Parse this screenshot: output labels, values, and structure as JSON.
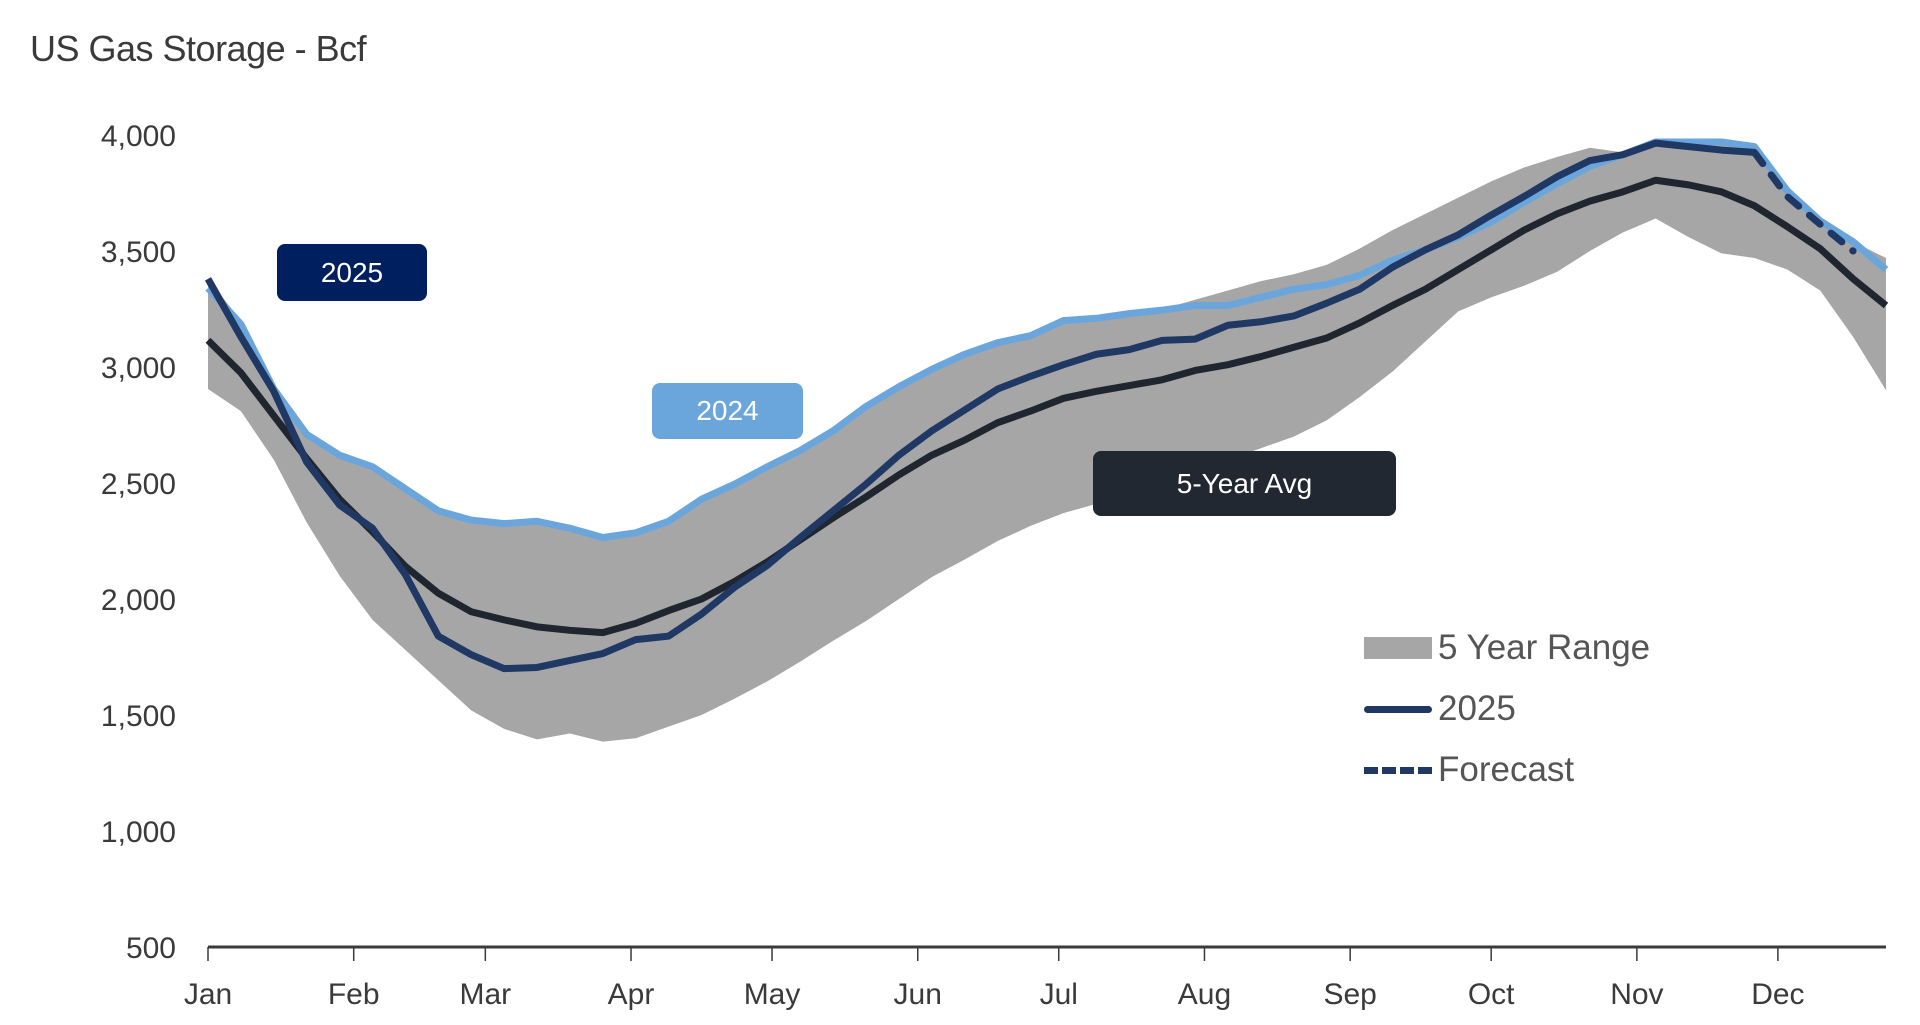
{
  "chart_data": {
    "type": "line",
    "title": "US Gas Storage - Bcf",
    "xlabel": "",
    "ylabel": "",
    "ylim": [
      500,
      4000
    ],
    "yticks": [
      "500",
      "1,000",
      "1,500",
      "2,000",
      "2,500",
      "3,000",
      "3,500",
      "4,000"
    ],
    "ytick_values": [
      500,
      1000,
      1500,
      2000,
      2500,
      3000,
      3500,
      4000
    ],
    "xlim": [
      "2025-01-01",
      "2025-12-24"
    ],
    "xticks": [
      "Jan",
      "Feb",
      "Mar",
      "Apr",
      "May",
      "Jun",
      "Jul",
      "Aug",
      "Sep",
      "Oct",
      "Nov",
      "Dec"
    ],
    "xtick_dates": [
      "2025-01-01",
      "2025-02-01",
      "2025-03-01",
      "2025-04-01",
      "2025-05-01",
      "2025-06-01",
      "2025-07-01",
      "2025-08-01",
      "2025-09-01",
      "2025-10-01",
      "2025-11-01",
      "2025-12-01"
    ],
    "x_start": "2025-01-01",
    "x_step_days": 7,
    "grid": false,
    "legend_position": "lower-right",
    "band": {
      "name": "5 Year Range",
      "color": "#a6a6a6",
      "lower": [
        2905,
        2810,
        2600,
        2330,
        2100,
        1910,
        1780,
        1650,
        1520,
        1440,
        1395,
        1420,
        1385,
        1400,
        1450,
        1500,
        1570,
        1645,
        1730,
        1820,
        1905,
        2000,
        2095,
        2170,
        2250,
        2315,
        2370,
        2410,
        2440,
        2490,
        2540,
        2600,
        2650,
        2700,
        2770,
        2870,
        2980,
        3110,
        3240,
        3300,
        3350,
        3410,
        3500,
        3580,
        3640,
        3560,
        3490,
        3470,
        3420,
        3330,
        3130,
        2900
      ],
      "upper": [
        3380,
        3200,
        2910,
        2720,
        2625,
        2575,
        2480,
        2385,
        2345,
        2330,
        2340,
        2310,
        2270,
        2290,
        2340,
        2435,
        2500,
        2575,
        2645,
        2730,
        2835,
        2920,
        2995,
        3060,
        3110,
        3140,
        3205,
        3215,
        3235,
        3250,
        3290,
        3330,
        3370,
        3400,
        3440,
        3510,
        3590,
        3660,
        3730,
        3800,
        3860,
        3905,
        3945,
        3925,
        3960,
        3965,
        3965,
        3955,
        3780,
        3640,
        3540,
        3470
      ]
    },
    "series": [
      {
        "key": "avg",
        "label": "5-Year Avg",
        "color": "#1f2630",
        "start_index": 0,
        "values": [
          3115,
          2975,
          2790,
          2605,
          2430,
          2290,
          2140,
          2025,
          1945,
          1910,
          1880,
          1865,
          1855,
          1895,
          1950,
          2000,
          2075,
          2160,
          2255,
          2350,
          2440,
          2535,
          2620,
          2685,
          2760,
          2810,
          2865,
          2895,
          2920,
          2945,
          2985,
          3010,
          3045,
          3085,
          3125,
          3190,
          3265,
          3335,
          3420,
          3505,
          3590,
          3660,
          3715,
          3755,
          3805,
          3785,
          3755,
          3695,
          3605,
          3510,
          3380,
          3265
        ]
      },
      {
        "key": "y2024",
        "label": "2024",
        "color": "#6aa6dc",
        "start_index": 0,
        "values": [
          3340,
          3185,
          2905,
          2710,
          2620,
          2570,
          2475,
          2380,
          2340,
          2325,
          2335,
          2305,
          2265,
          2285,
          2335,
          2430,
          2495,
          2570,
          2640,
          2725,
          2830,
          2915,
          2990,
          3055,
          3105,
          3135,
          3200,
          3210,
          3230,
          3245,
          3265,
          3265,
          3300,
          3335,
          3355,
          3395,
          3460,
          3505,
          3560,
          3625,
          3710,
          3790,
          3865,
          3915,
          3970,
          3970,
          3970,
          3950,
          3760,
          3630,
          3540,
          3420
        ]
      },
      {
        "key": "y2025",
        "name": "2025",
        "color": "#1f3864",
        "start_index": 0,
        "values": [
          3380,
          3130,
          2895,
          2590,
          2405,
          2305,
          2105,
          1840,
          1760,
          1700,
          1705,
          1735,
          1765,
          1825,
          1840,
          1935,
          2050,
          2145,
          2265,
          2380,
          2495,
          2620,
          2725,
          2815,
          2905,
          2960,
          3010,
          3055,
          3075,
          3115,
          3120,
          3180,
          3195,
          3220,
          3275,
          3335,
          3430,
          3505,
          3570,
          3655,
          3735,
          3820,
          3890,
          3915,
          3965,
          3950,
          3935,
          3925
        ]
      },
      {
        "key": "forecast",
        "name": "Forecast",
        "color": "#1f3864",
        "dashed": true,
        "start_index": 47,
        "values": [
          3925,
          3735,
          3615,
          3500
        ]
      }
    ],
    "annotations": [
      {
        "text": "2025",
        "color": "#001f5f"
      },
      {
        "text": "2024",
        "color": "#6aa6dc"
      },
      {
        "text": "5-Year Avg",
        "color": "#212832"
      }
    ],
    "legend": [
      {
        "label": "5 Year Range",
        "style": "band",
        "color": "#a6a6a6"
      },
      {
        "label": "2025",
        "style": "solid",
        "color": "#1f3864"
      },
      {
        "label": "Forecast",
        "style": "dashed",
        "color": "#1f3864"
      }
    ]
  }
}
